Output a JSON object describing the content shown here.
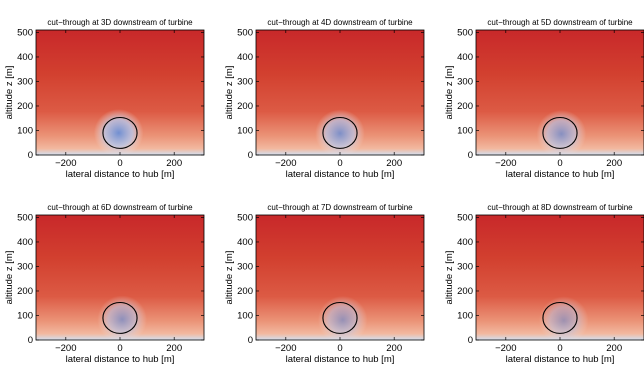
{
  "chart_data": [
    {
      "type": "heatmap",
      "title": "cut−through at 3D downstream of turbine",
      "xlabel": "lateral distance to hub [m]",
      "ylabel": "altitude z [m]",
      "xlim": [
        -310,
        310
      ],
      "ylim": [
        0,
        510
      ],
      "xticks": [
        "−200",
        "0",
        "200"
      ],
      "xtick_values": [
        -200,
        0,
        200
      ],
      "yticks": [
        "0",
        "100",
        "200",
        "300",
        "400",
        "500"
      ],
      "ytick_values": [
        0,
        100,
        200,
        300,
        400,
        500
      ],
      "rotor": {
        "center_x": 0,
        "center_z": 90,
        "radius": 63
      },
      "wake": {
        "center_x": -5,
        "center_z": 90,
        "strength": 0.95
      }
    },
    {
      "type": "heatmap",
      "title": "cut−through at 4D downstream of turbine",
      "xlabel": "lateral distance to hub [m]",
      "ylabel": "altitude z [m]",
      "xlim": [
        -310,
        310
      ],
      "ylim": [
        0,
        510
      ],
      "xticks": [
        "−200",
        "0",
        "200"
      ],
      "xtick_values": [
        -200,
        0,
        200
      ],
      "yticks": [
        "0",
        "100",
        "200",
        "300",
        "400",
        "500"
      ],
      "ytick_values": [
        0,
        100,
        200,
        300,
        400,
        500
      ],
      "rotor": {
        "center_x": 0,
        "center_z": 90,
        "radius": 63
      },
      "wake": {
        "center_x": 0,
        "center_z": 88,
        "strength": 0.85
      }
    },
    {
      "type": "heatmap",
      "title": "cut−through at 5D downstream of turbine",
      "xlabel": "lateral distance to hub [m]",
      "ylabel": "altitude z [m]",
      "xlim": [
        -310,
        310
      ],
      "ylim": [
        0,
        510
      ],
      "xticks": [
        "−200",
        "0",
        "200"
      ],
      "xtick_values": [
        -200,
        0,
        200
      ],
      "yticks": [
        "0",
        "100",
        "200",
        "300",
        "400",
        "500"
      ],
      "ytick_values": [
        0,
        100,
        200,
        300,
        400,
        500
      ],
      "rotor": {
        "center_x": 0,
        "center_z": 90,
        "radius": 63
      },
      "wake": {
        "center_x": 5,
        "center_z": 86,
        "strength": 0.78
      }
    },
    {
      "type": "heatmap",
      "title": "cut−through at 6D downstream of turbine",
      "xlabel": "lateral distance to hub [m]",
      "ylabel": "altitude z [m]",
      "xlim": [
        -310,
        310
      ],
      "ylim": [
        0,
        510
      ],
      "xticks": [
        "−200",
        "0",
        "200"
      ],
      "xtick_values": [
        -200,
        0,
        200
      ],
      "yticks": [
        "0",
        "100",
        "200",
        "300",
        "400",
        "500"
      ],
      "ytick_values": [
        0,
        100,
        200,
        300,
        400,
        500
      ],
      "rotor": {
        "center_x": 0,
        "center_z": 90,
        "radius": 63
      },
      "wake": {
        "center_x": 8,
        "center_z": 84,
        "strength": 0.72
      }
    },
    {
      "type": "heatmap",
      "title": "cut−through at 7D downstream of turbine",
      "xlabel": "lateral distance to hub [m]",
      "ylabel": "altitude z [m]",
      "xlim": [
        -310,
        310
      ],
      "ylim": [
        0,
        510
      ],
      "xticks": [
        "−200",
        "0",
        "200"
      ],
      "xtick_values": [
        -200,
        0,
        200
      ],
      "yticks": [
        "0",
        "100",
        "200",
        "300",
        "400",
        "500"
      ],
      "ytick_values": [
        0,
        100,
        200,
        300,
        400,
        500
      ],
      "rotor": {
        "center_x": 0,
        "center_z": 90,
        "radius": 63
      },
      "wake": {
        "center_x": 10,
        "center_z": 82,
        "strength": 0.66
      }
    },
    {
      "type": "heatmap",
      "title": "cut−through at 8D downstream of turbine",
      "xlabel": "lateral distance to hub [m]",
      "ylabel": "altitude z [m]",
      "xlim": [
        -310,
        310
      ],
      "ylim": [
        0,
        510
      ],
      "xticks": [
        "−200",
        "0",
        "200"
      ],
      "xtick_values": [
        -200,
        0,
        200
      ],
      "yticks": [
        "0",
        "100",
        "200",
        "300",
        "400",
        "500"
      ],
      "ytick_values": [
        0,
        100,
        200,
        300,
        400,
        500
      ],
      "rotor": {
        "center_x": 0,
        "center_z": 90,
        "radius": 63
      },
      "wake": {
        "center_x": 14,
        "center_z": 80,
        "strength": 0.6
      }
    }
  ],
  "colors": {
    "freestream_top": "#c8282a",
    "freestream_mid": "#dc5a44",
    "near_ground": "#f2b9a0",
    "ground": "#d3dff0",
    "wake_core": "#6b8fd6",
    "wake_edge": "#b7c8ec",
    "rotor_outline": "#000000"
  }
}
